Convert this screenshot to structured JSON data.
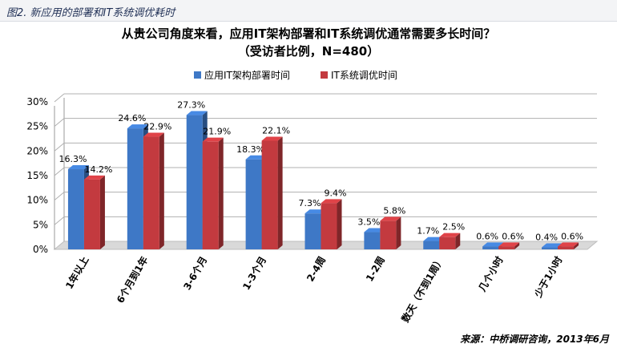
{
  "figure_label": "图2. 新应用的部署和IT系统调优耗时",
  "source_note": "来源：中桥调研咨询，2013年6月",
  "colors": {
    "series1": "#3e78c6",
    "series2": "#c33a3f",
    "grid": "#b0b0b0"
  },
  "chart_data": {
    "type": "bar",
    "title": "从贵公司角度来看，应用IT架构部署和IT系统调优通常需要多长时间？",
    "subtitle": "（受访者比例，N=480）",
    "categories": [
      "1年以上",
      "6个月到1年",
      "3-6个月",
      "1-3个月",
      "2-4周",
      "1-2周",
      "数天（不到1周）",
      "几个小时",
      "少于1小时"
    ],
    "series": [
      {
        "name": "应用IT架构部署时间",
        "values": [
          16.3,
          24.6,
          27.3,
          18.3,
          7.3,
          3.5,
          1.7,
          0.6,
          0.4
        ],
        "labels": [
          "16.3%",
          "24.6%",
          "27.3%",
          "18.3%",
          "7.3%",
          "3.5%",
          "1.7%",
          "0.6%",
          "0.4%"
        ]
      },
      {
        "name": "IT系统调优时间",
        "values": [
          14.2,
          22.9,
          21.9,
          22.1,
          9.4,
          5.8,
          2.5,
          0.6,
          0.6
        ],
        "labels": [
          "14.2%",
          "22.9%",
          "21.9%",
          "22.1%",
          "9.4%",
          "5.8%",
          "2.5%",
          "0.6%",
          "0.6%"
        ]
      }
    ],
    "ylim": [
      0,
      30
    ],
    "yticks": [
      "0%",
      "5%",
      "10%",
      "15%",
      "20%",
      "25%",
      "30%"
    ],
    "legend_position": "top",
    "grid": true
  }
}
